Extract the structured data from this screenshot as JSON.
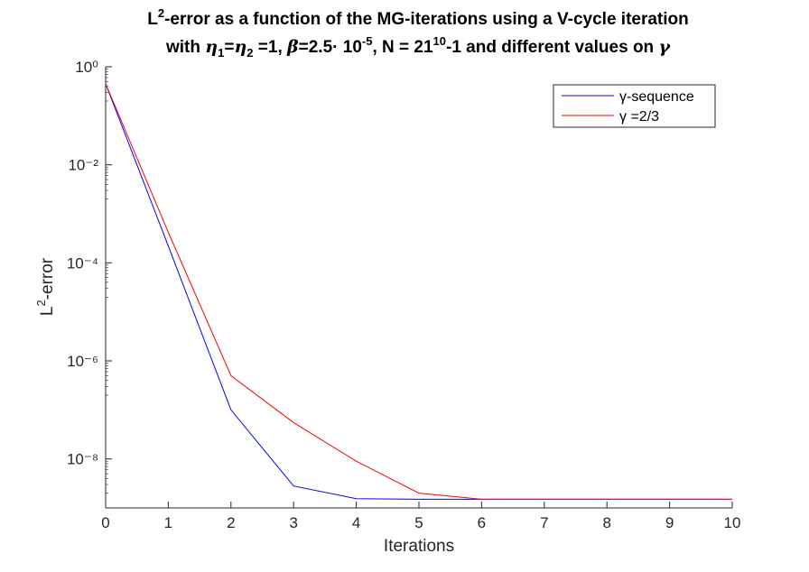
{
  "chart_data": {
    "type": "line",
    "title_line1": "L²-error as a function of the MG-iterations using a V-cycle iteration",
    "title_line2": "with η₁=η₂ =1, β=2.5· 10⁻⁵, N = 21¹⁰-1 and different values on γ",
    "xlabel": "Iterations",
    "ylabel": "L²-error",
    "x": [
      0,
      1,
      2,
      3,
      4,
      5,
      6,
      7,
      8,
      9,
      10
    ],
    "xlim": [
      0,
      10
    ],
    "ylim": [
      1e-09,
      1
    ],
    "yscale": "log",
    "x_ticks": [
      "0",
      "1",
      "2",
      "3",
      "4",
      "5",
      "6",
      "7",
      "8",
      "9",
      "10"
    ],
    "y_ticks": [
      "10⁰",
      "10⁻²",
      "10⁻⁴",
      "10⁻⁶",
      "10⁻⁸"
    ],
    "grid": false,
    "legend_position": "top-right",
    "series": [
      {
        "name": "γ-sequence",
        "color": "#0000ff",
        "values": [
          0.45,
          0.00022,
          1e-07,
          2.8e-09,
          1.55e-09,
          1.5e-09,
          1.5e-09,
          1.5e-09,
          1.5e-09,
          1.5e-09,
          1.5e-09
        ]
      },
      {
        "name": "γ =2/3",
        "color": "#ff0000",
        "values": [
          0.45,
          0.00042,
          5e-07,
          5.5e-08,
          9e-09,
          2e-09,
          1.5e-09,
          1.5e-09,
          1.5e-09,
          1.5e-09,
          1.5e-09
        ]
      }
    ]
  }
}
